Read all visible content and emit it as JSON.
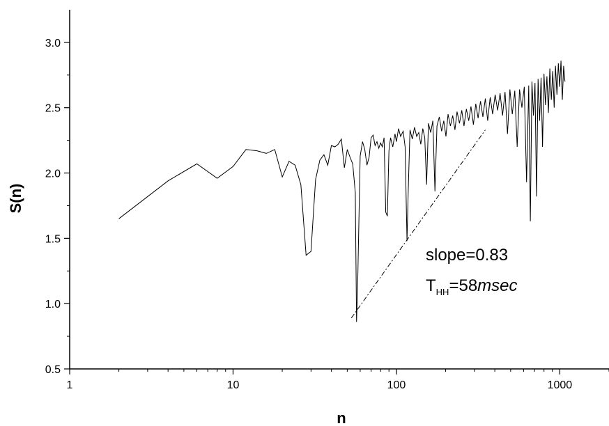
{
  "chart_data": {
    "type": "line",
    "xlabel": "n",
    "ylabel": "S(n)",
    "x_scale": "log",
    "xlim": [
      1,
      2000
    ],
    "ylim": [
      0.5,
      3.25
    ],
    "x_ticks": [
      1,
      10,
      100,
      1000
    ],
    "x_tick_labels": [
      "1",
      "10",
      "100",
      "1000"
    ],
    "y_ticks": [
      0.5,
      1.0,
      1.5,
      2.0,
      2.5,
      3.0
    ],
    "y_tick_labels": [
      "0.5",
      "1.0",
      "1.5",
      "2.0",
      "2.5",
      "3.0"
    ],
    "grid": false,
    "series": [
      {
        "color": "#000000",
        "points": [
          [
            2,
            1.65
          ],
          [
            4,
            1.94
          ],
          [
            6,
            2.07
          ],
          [
            8,
            1.96
          ],
          [
            10,
            2.05
          ],
          [
            12,
            2.18
          ],
          [
            14,
            2.17
          ],
          [
            16,
            2.15
          ],
          [
            18,
            2.18
          ],
          [
            20,
            1.97
          ],
          [
            22,
            2.09
          ],
          [
            24,
            2.06
          ],
          [
            26,
            1.91
          ],
          [
            28,
            1.37
          ],
          [
            30,
            1.4
          ],
          [
            32,
            1.95
          ],
          [
            34,
            2.1
          ],
          [
            36,
            2.14
          ],
          [
            38,
            2.06
          ],
          [
            40,
            2.21
          ],
          [
            42,
            2.2
          ],
          [
            44,
            2.22
          ],
          [
            46,
            2.26
          ],
          [
            48,
            2.04
          ],
          [
            50,
            2.18
          ],
          [
            52,
            2.12
          ],
          [
            54,
            2.07
          ],
          [
            56,
            1.85
          ],
          [
            57,
            0.86
          ],
          [
            58,
            1.2
          ],
          [
            60,
            2.13
          ],
          [
            62,
            2.24
          ],
          [
            64,
            2.18
          ],
          [
            66,
            2.06
          ],
          [
            68,
            2.12
          ],
          [
            70,
            2.27
          ],
          [
            72,
            2.29
          ],
          [
            74,
            2.21
          ],
          [
            76,
            2.24
          ],
          [
            78,
            2.19
          ],
          [
            80,
            2.23
          ],
          [
            82,
            2.2
          ],
          [
            84,
            2.27
          ],
          [
            86,
            1.7
          ],
          [
            88,
            1.67
          ],
          [
            90,
            2.17
          ],
          [
            92,
            2.27
          ],
          [
            95,
            2.2
          ],
          [
            98,
            2.3
          ],
          [
            100,
            2.24
          ],
          [
            103,
            2.34
          ],
          [
            106,
            2.28
          ],
          [
            110,
            2.32
          ],
          [
            113,
            2.2
          ],
          [
            116,
            1.48
          ],
          [
            118,
            1.85
          ],
          [
            121,
            2.33
          ],
          [
            125,
            2.26
          ],
          [
            129,
            2.35
          ],
          [
            133,
            2.28
          ],
          [
            137,
            2.31
          ],
          [
            141,
            2.22
          ],
          [
            145,
            2.34
          ],
          [
            149,
            2.27
          ],
          [
            153,
            1.91
          ],
          [
            157,
            2.38
          ],
          [
            162,
            2.31
          ],
          [
            167,
            2.4
          ],
          [
            172,
            1.86
          ],
          [
            177,
            2.36
          ],
          [
            183,
            2.43
          ],
          [
            189,
            2.32
          ],
          [
            195,
            2.4
          ],
          [
            201,
            2.28
          ],
          [
            207,
            2.45
          ],
          [
            214,
            2.36
          ],
          [
            221,
            2.44
          ],
          [
            228,
            2.33
          ],
          [
            235,
            2.47
          ],
          [
            243,
            2.38
          ],
          [
            251,
            2.48
          ],
          [
            259,
            2.36
          ],
          [
            268,
            2.49
          ],
          [
            277,
            2.4
          ],
          [
            286,
            2.51
          ],
          [
            296,
            2.37
          ],
          [
            306,
            2.53
          ],
          [
            316,
            2.42
          ],
          [
            327,
            2.55
          ],
          [
            338,
            2.43
          ],
          [
            350,
            2.57
          ],
          [
            362,
            2.4
          ],
          [
            375,
            2.58
          ],
          [
            388,
            2.45
          ],
          [
            402,
            2.6
          ],
          [
            416,
            2.48
          ],
          [
            431,
            2.61
          ],
          [
            446,
            2.44
          ],
          [
            462,
            2.62
          ],
          [
            478,
            2.3
          ],
          [
            495,
            2.64
          ],
          [
            512,
            2.45
          ],
          [
            530,
            2.63
          ],
          [
            548,
            2.2
          ],
          [
            567,
            2.64
          ],
          [
            586,
            2.5
          ],
          [
            606,
            2.66
          ],
          [
            626,
            1.93
          ],
          [
            645,
            2.67
          ],
          [
            660,
            1.63
          ],
          [
            675,
            2.7
          ],
          [
            690,
            2.44
          ],
          [
            705,
            2.69
          ],
          [
            720,
            1.82
          ],
          [
            736,
            2.72
          ],
          [
            752,
            2.4
          ],
          [
            768,
            2.73
          ],
          [
            784,
            2.2
          ],
          [
            800,
            2.76
          ],
          [
            817,
            2.52
          ],
          [
            834,
            2.74
          ],
          [
            851,
            2.46
          ],
          [
            869,
            2.8
          ],
          [
            887,
            2.56
          ],
          [
            905,
            2.78
          ],
          [
            923,
            2.5
          ],
          [
            941,
            2.82
          ],
          [
            960,
            2.6
          ],
          [
            979,
            2.84
          ],
          [
            998,
            2.66
          ],
          [
            1017,
            2.86
          ],
          [
            1036,
            2.56
          ],
          [
            1055,
            2.82
          ],
          [
            1075,
            2.7
          ]
        ]
      }
    ],
    "fit_line": {
      "style": "dash-dot",
      "color": "#000000",
      "points": [
        [
          53,
          0.89
        ],
        [
          350,
          2.33
        ]
      ]
    },
    "annotations": {
      "slope": "slope=0.83",
      "thh_main": "T",
      "thh_sub": "HH",
      "thh_value": "=58",
      "thh_unit": "msec"
    }
  }
}
